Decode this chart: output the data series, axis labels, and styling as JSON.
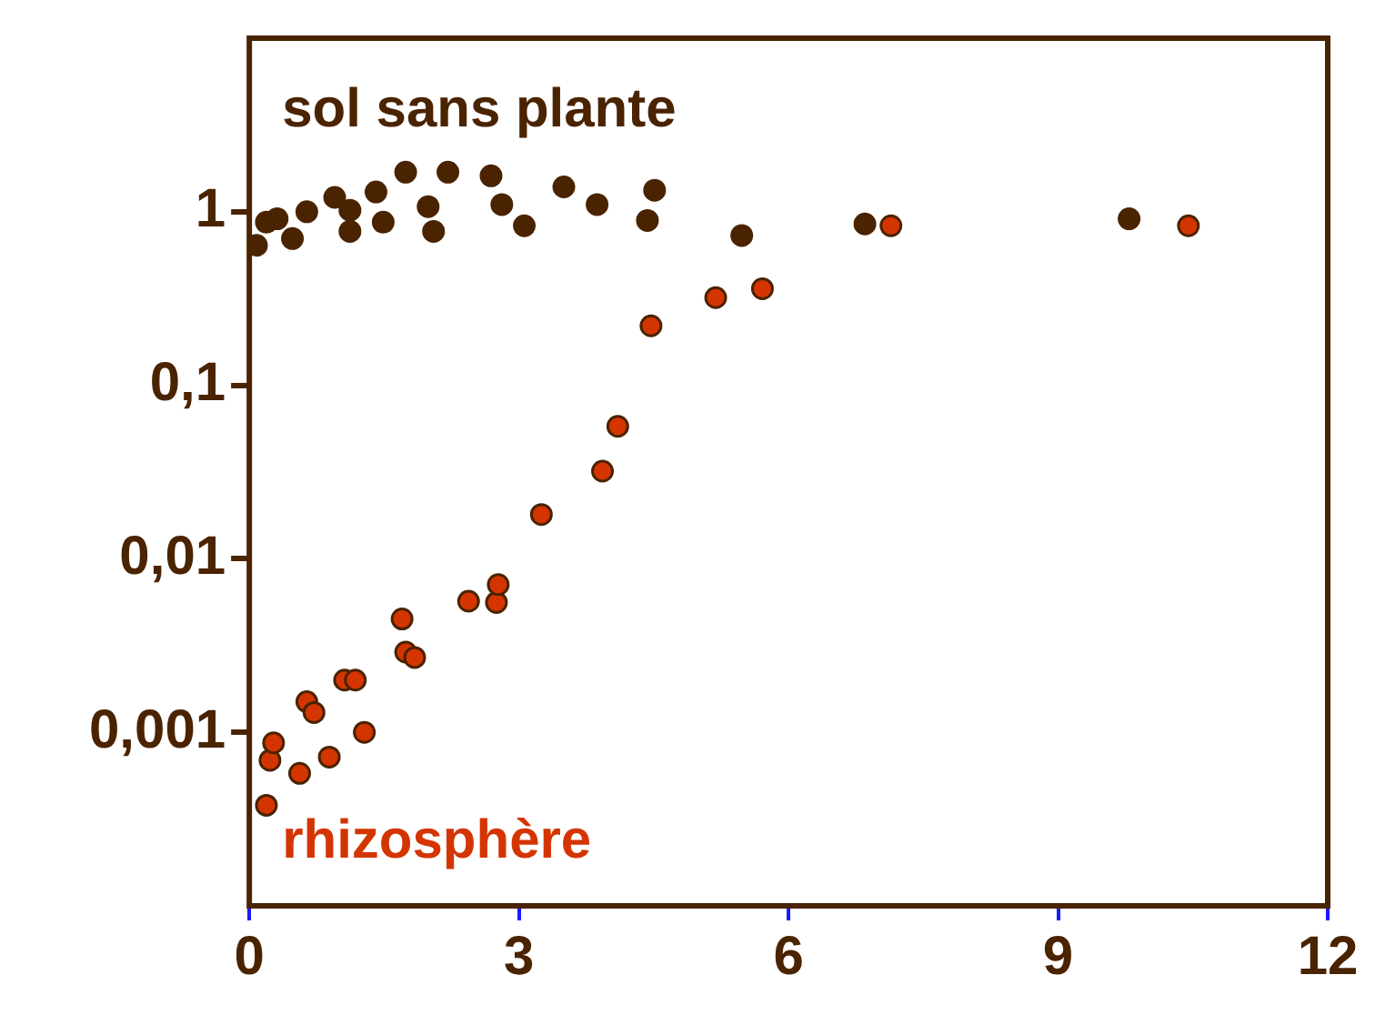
{
  "chart_data": {
    "type": "scatter",
    "log": "y",
    "xlim": [
      0,
      12
    ],
    "xticks": [
      0,
      3,
      6,
      9,
      12
    ],
    "ylim": [
      0.0001,
      10
    ],
    "yticks": [
      {
        "value": 0.001,
        "label": "0,001"
      },
      {
        "value": 0.01,
        "label": "0,01"
      },
      {
        "value": 0.1,
        "label": "0,1"
      },
      {
        "value": 1,
        "label": "1"
      }
    ],
    "grid": false,
    "legend": false,
    "marker": "circle",
    "series": [
      {
        "name": "sol sans plante",
        "color": "#4a2300",
        "x": [
          0.08,
          0.19,
          0.31,
          0.48,
          0.64,
          0.95,
          1.12,
          1.12,
          1.41,
          1.49,
          1.74,
          1.99,
          2.05,
          2.21,
          2.69,
          2.81,
          3.06,
          3.5,
          3.87,
          4.43,
          4.51,
          5.48,
          6.85,
          9.79
        ],
        "values": [
          0.64,
          0.87,
          0.91,
          0.7,
          1.0,
          1.21,
          1.02,
          0.77,
          1.3,
          0.87,
          1.69,
          1.07,
          0.77,
          1.69,
          1.61,
          1.1,
          0.83,
          1.39,
          1.1,
          0.89,
          1.33,
          0.73,
          0.85,
          0.91
        ]
      },
      {
        "name": "rhizosphère",
        "color": "#d43500",
        "x": [
          0.19,
          0.23,
          0.27,
          0.56,
          0.64,
          0.72,
          0.89,
          1.06,
          1.18,
          1.28,
          1.7,
          1.74,
          1.84,
          2.44,
          2.75,
          2.77,
          3.25,
          3.93,
          4.1,
          4.47,
          5.19,
          5.71,
          7.14,
          10.45
        ],
        "values": [
          0.00038,
          0.00069,
          0.00087,
          0.00058,
          0.0015,
          0.0013,
          0.00072,
          0.002,
          0.002,
          0.001,
          0.0045,
          0.0029,
          0.0027,
          0.0057,
          0.0056,
          0.0071,
          0.018,
          0.032,
          0.058,
          0.22,
          0.32,
          0.36,
          0.83,
          0.83
        ]
      }
    ]
  }
}
